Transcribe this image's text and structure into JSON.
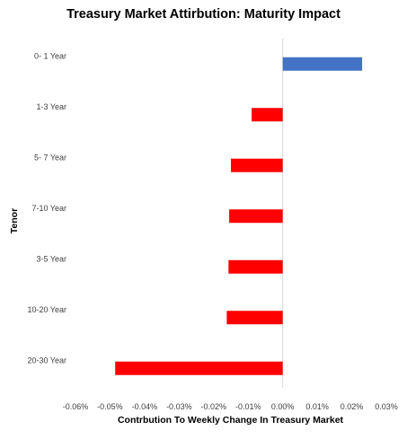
{
  "chart_data": {
    "type": "bar",
    "orientation": "horizontal",
    "title": "Treasury Market Attirbution: Maturity Impact",
    "xlabel": "Contrbution To Weekly Change In Treasury Market",
    "ylabel": "Tenor",
    "categories": [
      "0- 1 Year",
      "1-3 Year",
      "5- 7 Year",
      "7-10 Year",
      "3-5 Year",
      "10-20 Year",
      "20-30 Year"
    ],
    "values": [
      0.023,
      -0.009,
      -0.015,
      -0.0155,
      -0.0157,
      -0.0162,
      -0.0485
    ],
    "colors": [
      "#4472C4",
      "#FF0000",
      "#FF0000",
      "#FF0000",
      "#FF0000",
      "#FF0000",
      "#FF0000"
    ],
    "xlim": [
      -0.06,
      0.03
    ],
    "xticks": [
      -0.06,
      -0.05,
      -0.04,
      -0.03,
      -0.02,
      -0.01,
      0.0,
      0.01,
      0.02,
      0.03
    ],
    "xtick_labels": [
      "-0.06%",
      "-0.05%",
      "-0.04%",
      "-0.03%",
      "-0.02%",
      "-0.01%",
      "0.00%",
      "0.01%",
      "0.02%",
      "0.03%"
    ],
    "grid": false,
    "legend": "none"
  }
}
